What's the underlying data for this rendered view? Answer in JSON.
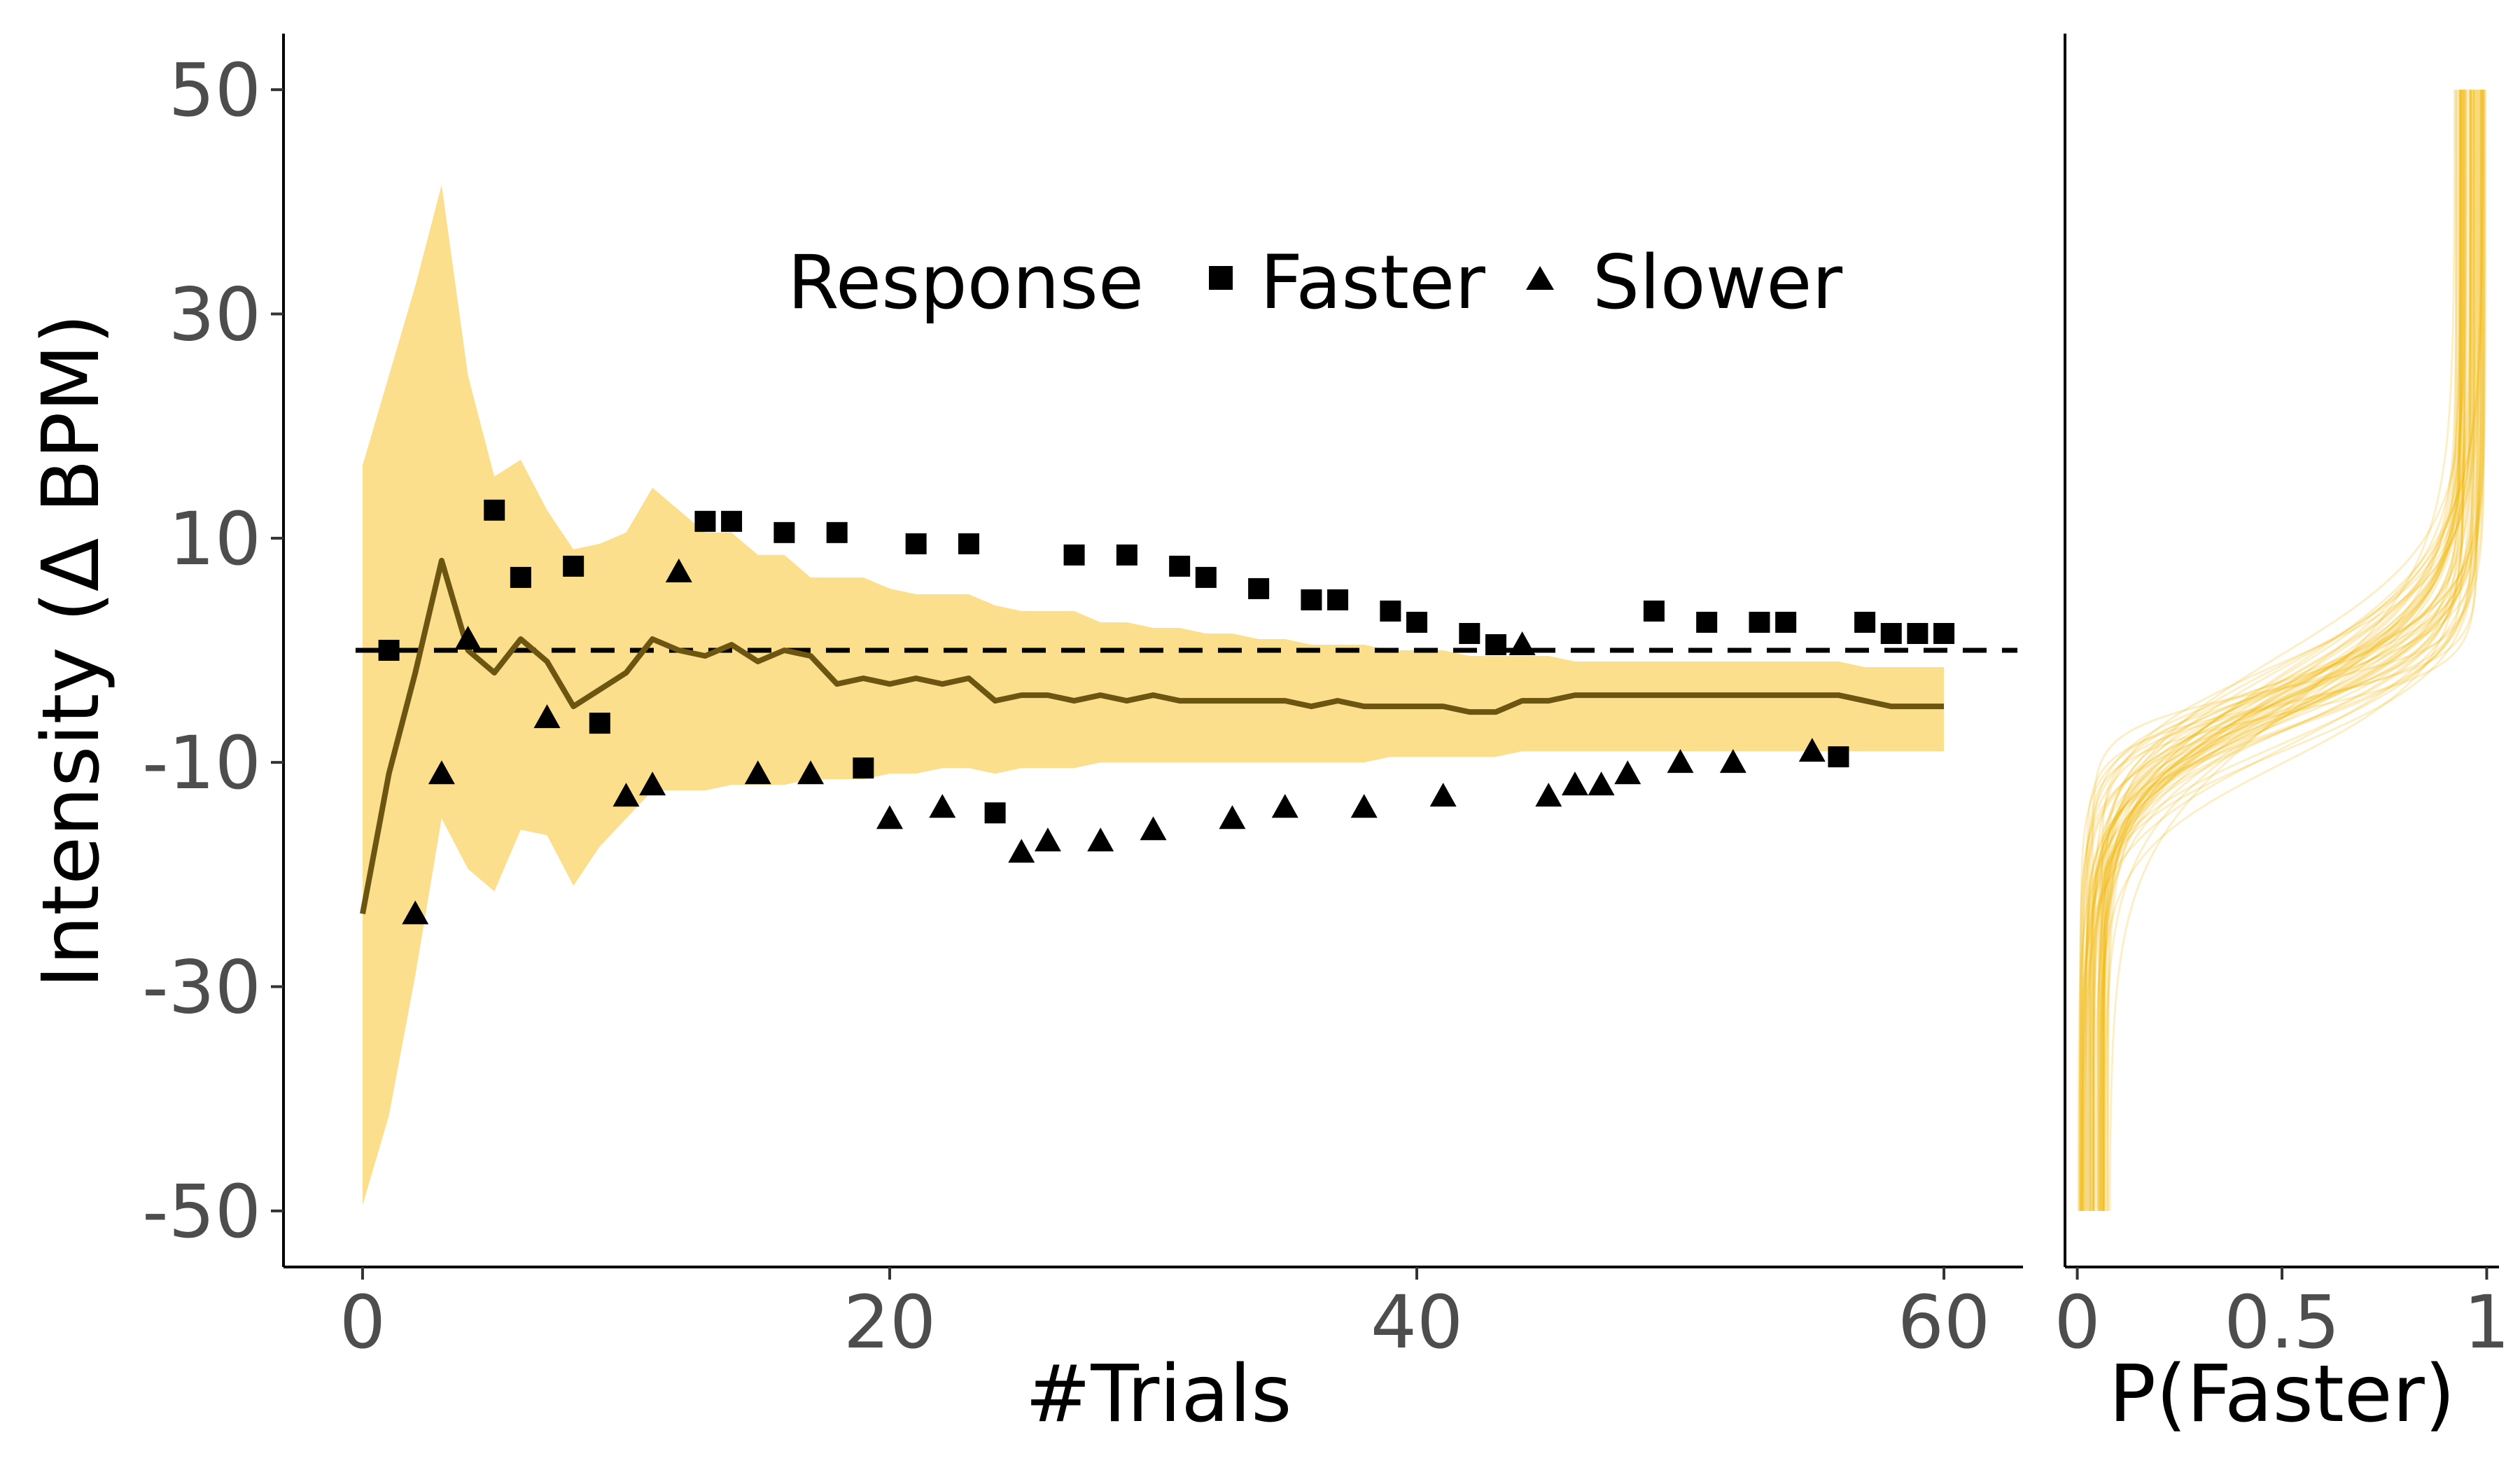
{
  "colors": {
    "band_fill": "#f7c52f",
    "estimate_line": "#6b5510",
    "psychometric_curves": "#f2b705",
    "marker_face": "#000000",
    "reference_line": "#000000",
    "tick_text": "#4d4d4d"
  },
  "legend": {
    "title": "Response",
    "items": [
      {
        "label": "Faster",
        "shape": "square"
      },
      {
        "label": "Slower",
        "shape": "triangle"
      }
    ]
  },
  "chart_data": [
    {
      "type": "scatter",
      "panel": "main",
      "xlabel": "#Trials",
      "ylabel": "Intensity  (Δ BPM)",
      "xlim": [
        -3,
        63
      ],
      "ylim": [
        -55,
        55
      ],
      "xticks": [
        0,
        20,
        40,
        60
      ],
      "xtick_labels": [
        "0",
        "20",
        "40",
        "60"
      ],
      "yticks": [
        -50,
        -30,
        -10,
        10,
        30,
        50
      ],
      "ytick_labels": [
        "-50",
        "-30",
        "-10",
        "10",
        "30",
        "50"
      ],
      "grid": false,
      "legend_position": "top",
      "reference_line": {
        "y": 0,
        "style": "dashed"
      },
      "threshold_estimate": {
        "x": [
          0,
          1,
          2,
          3,
          4,
          5,
          6,
          7,
          8,
          9,
          10,
          11,
          12,
          13,
          14,
          15,
          16,
          17,
          18,
          19,
          20,
          21,
          22,
          23,
          24,
          25,
          26,
          27,
          28,
          29,
          30,
          31,
          32,
          33,
          34,
          35,
          36,
          37,
          38,
          39,
          40,
          41,
          42,
          43,
          44,
          45,
          46,
          47,
          48,
          49,
          50,
          51,
          52,
          53,
          54,
          55,
          56,
          57,
          58,
          59,
          60
        ],
        "y": [
          -23.5,
          -11,
          -2,
          8,
          0,
          -2,
          1,
          -1,
          -5,
          -3.5,
          -2,
          1,
          0,
          -0.5,
          0.5,
          -1,
          0,
          -0.5,
          -3,
          -2.5,
          -3,
          -2.5,
          -3,
          -2.5,
          -4.5,
          -4,
          -4,
          -4.5,
          -4,
          -4.5,
          -4,
          -4.5,
          -4.5,
          -4.5,
          -4.5,
          -4.5,
          -5,
          -4.5,
          -5,
          -5,
          -5,
          -5,
          -5.5,
          -5.5,
          -4.5,
          -4.5,
          -4,
          -4,
          -4,
          -4,
          -4,
          -4,
          -4,
          -4,
          -4,
          -4,
          -4,
          -4.5,
          -5,
          -5,
          -5
        ]
      },
      "uncertainty_band": {
        "x": [
          0,
          1,
          2,
          3,
          4,
          5,
          6,
          7,
          8,
          9,
          10,
          11,
          12,
          13,
          14,
          15,
          16,
          17,
          18,
          19,
          20,
          21,
          22,
          23,
          24,
          25,
          26,
          27,
          28,
          29,
          30,
          31,
          32,
          33,
          34,
          35,
          36,
          37,
          38,
          39,
          40,
          41,
          42,
          43,
          44,
          45,
          46,
          47,
          48,
          49,
          50,
          51,
          52,
          53,
          54,
          55,
          56,
          57,
          58,
          59,
          60
        ],
        "lower": [
          -49.5,
          -41.5,
          -29,
          -15,
          -19.5,
          -21.5,
          -16,
          -16.5,
          -21,
          -17.5,
          -15,
          -12.5,
          -12.5,
          -12.5,
          -12,
          -12,
          -12,
          -11.5,
          -11.5,
          -11.5,
          -11,
          -11,
          -10.5,
          -10.5,
          -11,
          -10.5,
          -10.5,
          -10.5,
          -10,
          -10,
          -10,
          -10,
          -10,
          -10,
          -10,
          -10,
          -10,
          -10,
          -10,
          -9.5,
          -9.5,
          -9.5,
          -9.5,
          -9.5,
          -9,
          -9,
          -9,
          -9,
          -9,
          -9,
          -9,
          -9,
          -9,
          -9,
          -9,
          -9,
          -9,
          -9,
          -9,
          -9,
          -9
        ],
        "upper": [
          16.5,
          24.5,
          32.5,
          41.5,
          24.5,
          15.5,
          17,
          12.5,
          9,
          9.5,
          10.5,
          14.5,
          12.5,
          10.5,
          10.5,
          8.5,
          8.5,
          6.5,
          6.5,
          6.5,
          5.5,
          5,
          5,
          5,
          4,
          3.5,
          3.5,
          3.5,
          2.5,
          2.5,
          2,
          2,
          1.5,
          1.5,
          1,
          1,
          0.5,
          0.5,
          0.5,
          0,
          0,
          0,
          -0.5,
          -0.5,
          -0.5,
          -0.5,
          -1,
          -1,
          -1,
          -1,
          -1,
          -1,
          -1,
          -1,
          -1,
          -1,
          -1,
          -1.5,
          -1.5,
          -1.5,
          -1.5
        ]
      },
      "series": [
        {
          "name": "Faster",
          "marker": "square",
          "points": [
            [
              1,
              0
            ],
            [
              5,
              12.5
            ],
            [
              6,
              6.5
            ],
            [
              8,
              7.5
            ],
            [
              9,
              -6.5
            ],
            [
              13,
              11.5
            ],
            [
              14,
              11.5
            ],
            [
              16,
              10.5
            ],
            [
              18,
              10.5
            ],
            [
              19,
              -10.5
            ],
            [
              21,
              9.5
            ],
            [
              23,
              9.5
            ],
            [
              24,
              -14.5
            ],
            [
              27,
              8.5
            ],
            [
              29,
              8.5
            ],
            [
              31,
              7.5
            ],
            [
              32,
              6.5
            ],
            [
              34,
              5.5
            ],
            [
              36,
              4.5
            ],
            [
              37,
              4.5
            ],
            [
              39,
              3.5
            ],
            [
              40,
              2.5
            ],
            [
              42,
              1.5
            ],
            [
              43,
              0.5
            ],
            [
              49,
              3.5
            ],
            [
              51,
              2.5
            ],
            [
              53,
              2.5
            ],
            [
              54,
              2.5
            ],
            [
              56,
              -9.5
            ],
            [
              57,
              2.5
            ],
            [
              58,
              1.5
            ],
            [
              59,
              1.5
            ],
            [
              60,
              1.5
            ]
          ]
        },
        {
          "name": "Slower",
          "marker": "triangle",
          "points": [
            [
              2,
              -23.5
            ],
            [
              3,
              -11
            ],
            [
              4,
              1
            ],
            [
              7,
              -6
            ],
            [
              10,
              -13
            ],
            [
              11,
              -12
            ],
            [
              12,
              7
            ],
            [
              15,
              -11
            ],
            [
              17,
              -11
            ],
            [
              20,
              -15
            ],
            [
              22,
              -14
            ],
            [
              25,
              -18
            ],
            [
              26,
              -17
            ],
            [
              28,
              -17
            ],
            [
              30,
              -16
            ],
            [
              33,
              -15
            ],
            [
              35,
              -14
            ],
            [
              38,
              -14
            ],
            [
              41,
              -13
            ],
            [
              44,
              0.5
            ],
            [
              45,
              -13
            ],
            [
              46,
              -12
            ],
            [
              47,
              -12
            ],
            [
              48,
              -11
            ],
            [
              50,
              -10
            ],
            [
              52,
              -10
            ],
            [
              55,
              -9
            ]
          ]
        }
      ]
    },
    {
      "type": "line",
      "panel": "side",
      "xlabel": "P(Faster)",
      "ylabel": "",
      "xlim": [
        -0.03,
        1.03
      ],
      "ylim": [
        -55,
        55
      ],
      "xticks": [
        0,
        0.5,
        1
      ],
      "xtick_labels": [
        "0",
        "0.5",
        "1"
      ],
      "grid": false,
      "curve_family": {
        "count": 60,
        "y_range": [
          -50,
          50
        ],
        "threshold_mean": -5,
        "threshold_spread": 2,
        "slope_mean": 4,
        "slope_spread": 1,
        "lapse_range": [
          0,
          0.08
        ]
      }
    }
  ]
}
